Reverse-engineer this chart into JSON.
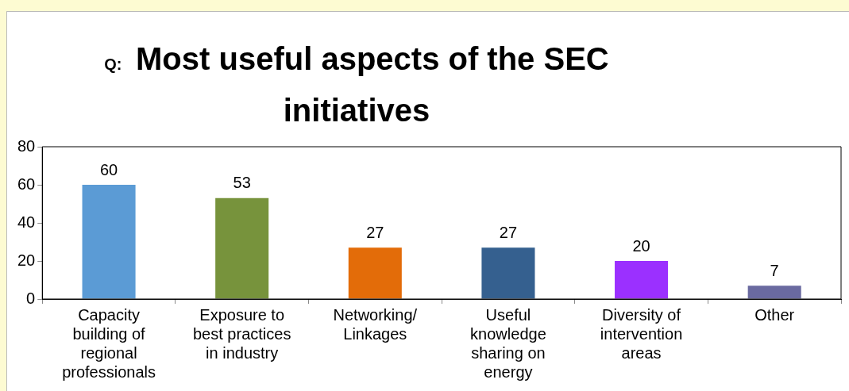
{
  "chart_data": {
    "type": "bar",
    "title": "Q: Most useful aspects of the SEC initiatives",
    "categories": [
      "Capacity building of regional professionals",
      "Exposure to best practices in industry",
      "Networking/ Linkages",
      "Useful knowledge sharing on energy",
      "Diversity of intervention areas",
      "Other"
    ],
    "values": [
      60,
      53,
      27,
      27,
      20,
      7
    ],
    "colors": [
      "#5b9bd5",
      "#77933c",
      "#e36c09",
      "#35608f",
      "#9b30ff",
      "#6a6aa0"
    ],
    "ylim": [
      0,
      80
    ],
    "yticks": [
      0,
      20,
      40,
      60,
      80
    ],
    "grid": false,
    "legend": false,
    "data_labels": true
  }
}
